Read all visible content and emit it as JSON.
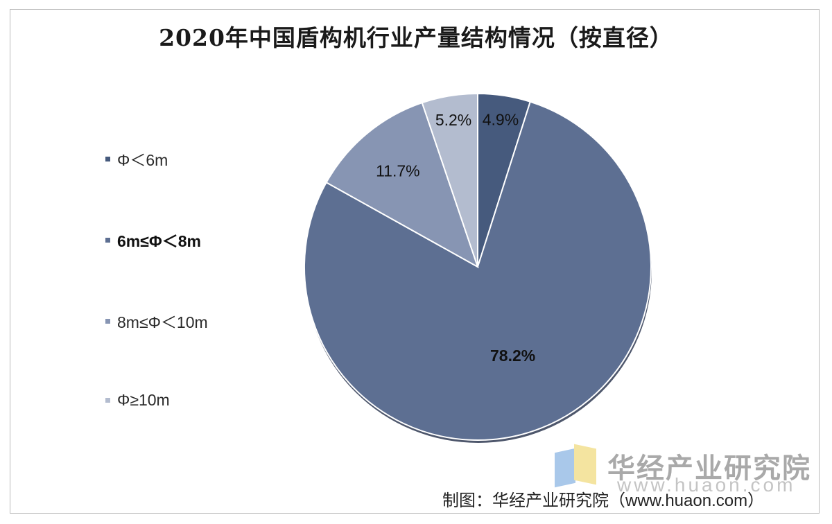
{
  "chart_data": {
    "type": "pie",
    "title": "2020年中国盾构机行业产量结构情况（按直径）",
    "slices": [
      {
        "label": "Φ＜6m",
        "value": 4.9,
        "display": "4.9%",
        "color": "#465a7d"
      },
      {
        "label": "6m≤Φ＜8m",
        "value": 78.2,
        "display": "78.2%",
        "color": "#5d6f92"
      },
      {
        "label": "8m≤Φ＜10m",
        "value": 11.7,
        "display": "11.7%",
        "color": "#8795b3"
      },
      {
        "label": "Φ≥10m",
        "value": 5.2,
        "display": "5.2%",
        "color": "#b3bccf"
      }
    ],
    "legend_position": "left",
    "start_angle": "12 o'clock",
    "direction": "clockwise"
  },
  "watermark": {
    "name": "华经产业研究院",
    "url": "www.huaon.com"
  },
  "source": "制图：华经产业研究院（www.huaon.com）"
}
